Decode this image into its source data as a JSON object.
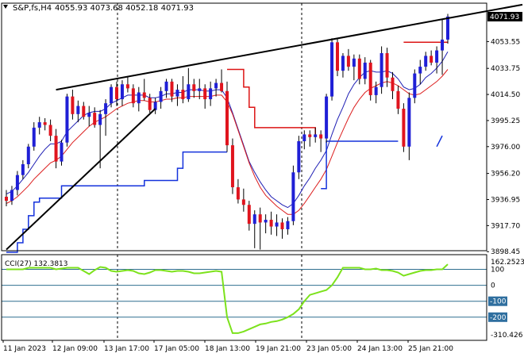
{
  "header": {
    "symbol": "S&P,fs,H4",
    "ohlc": "4055.93 4073.68 4052.18 4071.93"
  },
  "colors": {
    "up_candle": "#1f1fd6",
    "down_candle": "#e0141e",
    "ma_fast": "#1e1eb4",
    "ma_slow": "#dc1e1e",
    "step_red": "#dc1414",
    "step_blue": "#1432dc",
    "cci_line": "#7ce21c",
    "cci_level": "#2f6f8f",
    "trendline": "#000000",
    "price_tag_bg": "#000000",
    "price_tag_fg": "#ffffff"
  },
  "chart_data": [
    {
      "type": "candlestick",
      "title": "S&P,fs,H4",
      "price_tag": "4071.93",
      "ylim": [
        3895,
        4090
      ],
      "y_tick_labels": [
        "4071.93",
        "4053.55",
        "4033.75",
        "4014.50",
        "3995.25",
        "3976.00",
        "3956.20",
        "3936.95",
        "3917.70",
        "3898.45"
      ],
      "x_tick_labels": [
        "11 Jan 2023",
        "12 Jan 09:00",
        "13 Jan 17:00",
        "17 Jan 05:00",
        "18 Jan 13:00",
        "19 Jan 21:00",
        "23 Jan 05:00",
        "24 Jan 13:00",
        "25 Jan 21:00"
      ],
      "candles": [
        [
          3939,
          3944,
          3932,
          3936
        ],
        [
          3936,
          3947,
          3933,
          3944
        ],
        [
          3944,
          3958,
          3940,
          3955
        ],
        [
          3955,
          3966,
          3952,
          3963
        ],
        [
          3963,
          3978,
          3960,
          3976
        ],
        [
          3976,
          3994,
          3973,
          3990
        ],
        [
          3990,
          3998,
          3985,
          3994
        ],
        [
          3994,
          3997,
          3988,
          3992
        ],
        [
          3992,
          3996,
          3980,
          3984
        ],
        [
          3984,
          3989,
          3960,
          3965
        ],
        [
          3965,
          3981,
          3962,
          3979
        ],
        [
          3979,
          4015,
          3976,
          4013
        ],
        [
          4013,
          4018,
          3996,
          4000
        ],
        [
          4000,
          4010,
          3994,
          4006
        ],
        [
          4006,
          4009,
          3996,
          3998
        ],
        [
          3998,
          4006,
          3991,
          4001
        ],
        [
          4001,
          4005,
          3990,
          3992
        ],
        [
          3992,
          4003,
          3960,
          4000
        ],
        [
          4000,
          4011,
          3984,
          4008
        ],
        [
          4008,
          4022,
          4005,
          4020
        ],
        [
          4020,
          4024,
          4006,
          4011
        ],
        [
          4011,
          4025,
          4006,
          4022
        ],
        [
          4022,
          4028,
          4016,
          4019
        ],
        [
          4019,
          4022,
          4005,
          4008
        ],
        [
          4008,
          4020,
          4002,
          4016
        ],
        [
          4016,
          4026,
          4010,
          4012
        ],
        [
          4012,
          4015,
          4001,
          4003
        ],
        [
          4003,
          4012,
          4000,
          4009
        ],
        [
          4009,
          4020,
          4004,
          4017
        ],
        [
          4017,
          4026,
          4012,
          4024
        ],
        [
          4024,
          4026,
          4009,
          4013
        ],
        [
          4013,
          4022,
          4006,
          4018
        ],
        [
          4018,
          4028,
          4008,
          4011
        ],
        [
          4011,
          4034,
          4009,
          4022
        ],
        [
          4022,
          4026,
          4012,
          4017
        ],
        [
          4017,
          4026,
          4011,
          4019
        ],
        [
          4019,
          4022,
          4004,
          4011
        ],
        [
          4011,
          4024,
          4006,
          4019
        ],
        [
          4019,
          4026,
          4013,
          4023
        ],
        [
          4023,
          4033,
          4016,
          4017
        ],
        [
          4017,
          4024,
          3972,
          3977
        ],
        [
          3977,
          3982,
          3941,
          3946
        ],
        [
          3946,
          3952,
          3934,
          3937
        ],
        [
          3937,
          3945,
          3928,
          3933
        ],
        [
          3933,
          3936,
          3914,
          3919
        ],
        [
          3919,
          3929,
          3901,
          3926
        ],
        [
          3926,
          3931,
          3900,
          3920
        ],
        [
          3920,
          3926,
          3912,
          3922
        ],
        [
          3922,
          3928,
          3911,
          3917
        ],
        [
          3917,
          3926,
          3910,
          3920
        ],
        [
          3920,
          3923,
          3908,
          3915
        ],
        [
          3915,
          3924,
          3911,
          3921
        ],
        [
          3921,
          3962,
          3918,
          3957
        ],
        [
          3957,
          3984,
          3952,
          3980
        ],
        [
          3980,
          3988,
          3974,
          3985
        ],
        [
          3985,
          3988,
          3976,
          3983
        ],
        [
          3983,
          3990,
          3979,
          3985
        ],
        [
          3985,
          3988,
          3972,
          3982
        ],
        [
          3982,
          4015,
          3979,
          4013
        ],
        [
          4013,
          4056,
          4010,
          4053
        ],
        [
          4053,
          4056,
          4028,
          4032
        ],
        [
          4032,
          4045,
          4027,
          4043
        ],
        [
          4043,
          4048,
          4032,
          4035
        ],
        [
          4035,
          4044,
          4025,
          4041
        ],
        [
          4041,
          4044,
          4022,
          4026
        ],
        [
          4026,
          4042,
          4022,
          4038
        ],
        [
          4038,
          4040,
          4010,
          4014
        ],
        [
          4014,
          4024,
          4008,
          4020
        ],
        [
          4020,
          4050,
          4015,
          4045
        ],
        [
          4045,
          4049,
          4020,
          4027
        ],
        [
          4027,
          4031,
          4011,
          4017
        ],
        [
          4017,
          4021,
          4000,
          4004
        ],
        [
          4004,
          4008,
          3972,
          3976
        ],
        [
          3976,
          4016,
          3966,
          4012
        ],
        [
          4012,
          4033,
          4008,
          4030
        ],
        [
          4030,
          4040,
          4022,
          4035
        ],
        [
          4035,
          4046,
          4032,
          4043
        ],
        [
          4043,
          4047,
          4036,
          4038
        ],
        [
          4038,
          4050,
          4030,
          4047
        ],
        [
          4047,
          4070,
          4029,
          4055
        ],
        [
          4055,
          4074,
          4052,
          4072
        ]
      ],
      "series": [
        {
          "name": "",
          "values": [
            3941,
            3943,
            3947,
            3952,
            3957,
            3963,
            3969,
            3974,
            3978,
            3978,
            3980,
            3987,
            3991,
            3995,
            3999,
            4001,
            4002,
            4002,
            4004,
            4008,
            4010,
            4012,
            4014,
            4014,
            4014,
            4014,
            4012,
            4012,
            4013,
            4015,
            4015,
            4016,
            4016,
            4018,
            4018,
            4018,
            4017,
            4017,
            4018,
            4018,
            4012,
            4001,
            3989,
            3977,
            3965,
            3957,
            3950,
            3944,
            3939,
            3936,
            3933,
            3931,
            3934,
            3940,
            3947,
            3953,
            3960,
            3966,
            3973,
            3985,
            3996,
            4005,
            4015,
            4022,
            4027,
            4031,
            4032,
            4031,
            4031,
            4032,
            4030,
            4026,
            4020,
            4018,
            4019,
            4022,
            4027,
            4030,
            4034,
            4039,
            4046
          ]
        },
        {
          "name": "",
          "values": [
            3934,
            3936,
            3939,
            3943,
            3947,
            3952,
            3956,
            3960,
            3964,
            3966,
            3969,
            3974,
            3979,
            3983,
            3987,
            3991,
            3994,
            3996,
            3998,
            4001,
            4004,
            4006,
            4008,
            4009,
            4010,
            4010,
            4009,
            4009,
            4010,
            4011,
            4011,
            4012,
            4012,
            4013,
            4013,
            4013,
            4013,
            4013,
            4014,
            4014,
            4009,
            4000,
            3988,
            3976,
            3964,
            3954,
            3946,
            3940,
            3936,
            3932,
            3929,
            3926,
            3926,
            3929,
            3934,
            3940,
            3946,
            3952,
            3959,
            3969,
            3979,
            3988,
            3997,
            4005,
            4011,
            4016,
            4019,
            4021,
            4023,
            4024,
            4023,
            4021,
            4018,
            4015,
            4014,
            4015,
            4018,
            4021,
            4024,
            4028,
            4033
          ]
        },
        {
          "name": "",
          "values": [
            null,
            null,
            null,
            null,
            null,
            null,
            null,
            null,
            null,
            null,
            null,
            null,
            null,
            null,
            null,
            null,
            null,
            null,
            null,
            null,
            null,
            null,
            null,
            null,
            null,
            null,
            null,
            null,
            null,
            null,
            null,
            null,
            null,
            null,
            null,
            null,
            null,
            null,
            null,
            null,
            4033,
            4033,
            4033,
            4020,
            4005,
            3990,
            3990,
            3990,
            3990,
            3990,
            3990,
            3990,
            3990,
            3990,
            3990,
            3990,
            3985,
            null,
            null,
            null,
            null,
            null,
            null,
            null,
            null,
            null,
            null,
            null,
            null,
            null,
            null,
            null,
            4053,
            4053,
            4053,
            4053,
            4053,
            4053,
            4053,
            4053,
            4053
          ]
        },
        {
          "name": "",
          "values": [
            null,
            null,
            null,
            null,
            null,
            null,
            null,
            null,
            null,
            null,
            null,
            null,
            null,
            null,
            null,
            null,
            null,
            null,
            null,
            null,
            null,
            null,
            null,
            null,
            null,
            null,
            null,
            null,
            null,
            null,
            null,
            null,
            null,
            null,
            null,
            null,
            null,
            null,
            null,
            null,
            null,
            null,
            null,
            null,
            null,
            null,
            null,
            null,
            null,
            null,
            null,
            null,
            null,
            null,
            null,
            null,
            null,
            3945,
            3980,
            3980,
            3980,
            3980,
            3980,
            3980,
            3980,
            3980,
            3980,
            3980,
            3980,
            3980,
            3980,
            3980,
            null,
            null,
            null,
            null,
            null,
            null,
            null,
            null,
            null
          ]
        }
      ],
      "support_step": [
        3898,
        3898,
        3905,
        3915,
        3925,
        3935,
        3938,
        3938,
        3938,
        3938,
        3947,
        3947,
        3947,
        3947,
        3947,
        3947,
        3947,
        3947,
        3947,
        3947,
        3947,
        3947,
        3947,
        3947,
        3947,
        3951,
        3951,
        3951,
        3951,
        3951,
        3951,
        3960,
        3972,
        3972,
        3972,
        3972,
        3972,
        3972,
        3972,
        3972,
        3972
      ],
      "trendlines": [
        {
          "from": [
            9,
            4018
          ],
          "to": [
            79,
            4070
          ]
        },
        {
          "from": [
            0,
            3900
          ],
          "to": [
            27,
            4004
          ]
        }
      ]
    },
    {
      "type": "line",
      "title": "CCI(27) 132.3813",
      "top_label": "162.2523",
      "bottom_label": "-310.426",
      "ylim": [
        -310.426,
        162.2523
      ],
      "levels": [
        "100",
        "0",
        "-100",
        "-200"
      ],
      "level_values": [
        100,
        0,
        -100,
        -200
      ],
      "values": [
        100,
        100,
        100,
        100,
        110,
        110,
        110,
        110,
        110,
        100,
        105,
        110,
        110,
        110,
        90,
        70,
        95,
        115,
        110,
        90,
        85,
        90,
        95,
        90,
        75,
        70,
        80,
        95,
        95,
        90,
        85,
        90,
        90,
        85,
        75,
        75,
        80,
        85,
        90,
        85,
        -200,
        -300,
        -300,
        -290,
        -275,
        -260,
        -245,
        -240,
        -230,
        -225,
        -215,
        -200,
        -180,
        -150,
        -100,
        -60,
        -50,
        -40,
        -30,
        0,
        50,
        110,
        110,
        110,
        110,
        100,
        100,
        105,
        95,
        95,
        90,
        80,
        60,
        70,
        80,
        90,
        95,
        95,
        100,
        100,
        132
      ]
    }
  ]
}
